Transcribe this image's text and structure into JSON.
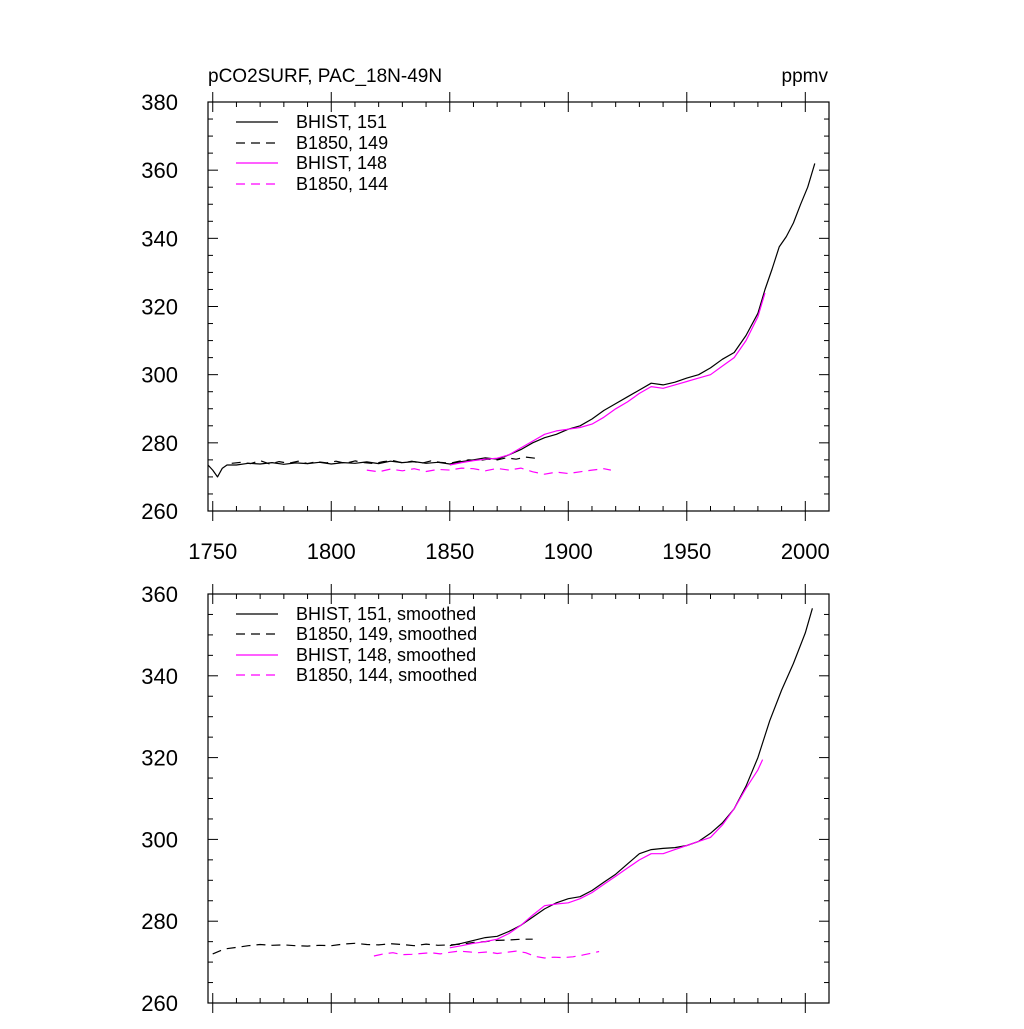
{
  "chart_data": [
    {
      "type": "line",
      "title_left": "pCO2SURF, PAC_18N-49N",
      "title_right": "ppmv",
      "xlabel": "",
      "ylabel": "",
      "xlim": [
        1748,
        2010
      ],
      "ylim": [
        260,
        380
      ],
      "x_ticks": [
        1750,
        1800,
        1850,
        1900,
        1950,
        2000
      ],
      "y_ticks": [
        260,
        280,
        300,
        320,
        340,
        360,
        380
      ],
      "show_x_tick_labels": true,
      "legend_position": "top-left",
      "series": [
        {
          "name": "BHIST, 151",
          "color": "#000000",
          "dash": "solid",
          "x": [
            1748,
            1750,
            1752,
            1754,
            1756,
            1760,
            1765,
            1770,
            1775,
            1780,
            1785,
            1790,
            1795,
            1800,
            1805,
            1810,
            1815,
            1820,
            1825,
            1830,
            1835,
            1840,
            1845,
            1850,
            1855,
            1860,
            1865,
            1870,
            1875,
            1880,
            1885,
            1890,
            1895,
            1900,
            1905,
            1910,
            1915,
            1920,
            1925,
            1930,
            1935,
            1940,
            1945,
            1950,
            1955,
            1960,
            1965,
            1970,
            1975,
            1980,
            1983,
            1986,
            1989,
            1992,
            1995,
            1998,
            2001,
            2004
          ],
          "y": [
            273.5,
            272.0,
            270.0,
            272.5,
            273.5,
            273.5,
            274.0,
            273.8,
            274.2,
            273.7,
            274.1,
            273.9,
            274.3,
            273.8,
            274.2,
            274.0,
            274.4,
            273.9,
            274.6,
            274.2,
            274.5,
            274.0,
            274.3,
            273.8,
            274.5,
            275.0,
            275.6,
            275.2,
            276.5,
            278.0,
            280.0,
            281.5,
            282.5,
            284.0,
            285.0,
            287.0,
            289.5,
            291.5,
            293.5,
            295.5,
            297.5,
            297.0,
            297.8,
            299.0,
            300.0,
            302.0,
            304.5,
            306.5,
            311.5,
            318.0,
            325.0,
            331.0,
            337.5,
            340.5,
            344.5,
            350.0,
            355.0,
            362.0
          ]
        },
        {
          "name": "B1850, 149",
          "color": "#000000",
          "dash": "dashed",
          "x": [
            1758,
            1762,
            1766,
            1770,
            1774,
            1778,
            1782,
            1786,
            1790,
            1794,
            1798,
            1802,
            1806,
            1810,
            1814,
            1818,
            1822,
            1826,
            1830,
            1834,
            1838,
            1842,
            1846,
            1850,
            1854,
            1858,
            1862,
            1866,
            1870,
            1874,
            1878,
            1882,
            1886
          ],
          "y": [
            274.0,
            274.3,
            273.9,
            274.8,
            273.8,
            274.5,
            274.0,
            274.6,
            273.9,
            274.5,
            274.1,
            274.6,
            274.0,
            274.7,
            274.2,
            273.9,
            274.5,
            274.8,
            274.1,
            274.6,
            274.0,
            274.7,
            274.3,
            274.0,
            274.6,
            275.0,
            274.8,
            275.2,
            275.0,
            275.6,
            275.2,
            275.8,
            275.5
          ]
        },
        {
          "name": "BHIST, 148",
          "color": "#ff00ff",
          "dash": "solid",
          "x": [
            1850,
            1855,
            1860,
            1865,
            1870,
            1875,
            1880,
            1885,
            1890,
            1895,
            1900,
            1905,
            1910,
            1915,
            1920,
            1925,
            1930,
            1935,
            1940,
            1945,
            1950,
            1955,
            1960,
            1965,
            1970,
            1975,
            1980,
            1983
          ],
          "y": [
            273.5,
            274.2,
            274.8,
            275.2,
            275.5,
            276.5,
            278.5,
            280.5,
            282.5,
            283.5,
            284.0,
            284.5,
            285.5,
            287.5,
            290.0,
            292.0,
            294.5,
            296.5,
            296.0,
            297.0,
            298.0,
            299.0,
            300.0,
            302.5,
            305.0,
            310.0,
            317.0,
            324.0
          ]
        },
        {
          "name": "B1850, 144",
          "color": "#ff00ff",
          "dash": "dashed",
          "x": [
            1815,
            1820,
            1825,
            1830,
            1835,
            1840,
            1845,
            1850,
            1855,
            1860,
            1865,
            1870,
            1875,
            1880,
            1885,
            1890,
            1895,
            1900,
            1905,
            1910,
            1915,
            1918
          ],
          "y": [
            272.0,
            271.5,
            272.3,
            271.8,
            272.4,
            271.6,
            272.2,
            272.0,
            272.6,
            272.4,
            271.8,
            272.5,
            272.0,
            272.6,
            271.5,
            270.8,
            271.4,
            271.0,
            271.5,
            272.0,
            272.4,
            272.0
          ]
        }
      ]
    },
    {
      "type": "line",
      "title_left": "",
      "title_right": "",
      "xlabel": "",
      "ylabel": "",
      "xlim": [
        1748,
        2010
      ],
      "ylim": [
        260,
        360
      ],
      "x_ticks": [
        1750,
        1800,
        1850,
        1900,
        1950,
        2000
      ],
      "y_ticks": [
        260,
        280,
        300,
        320,
        340,
        360
      ],
      "show_x_tick_labels": false,
      "legend_position": "top-left",
      "series": [
        {
          "name": "BHIST, 151, smoothed",
          "color": "#000000",
          "dash": "solid",
          "x": [
            1850,
            1855,
            1860,
            1865,
            1870,
            1875,
            1880,
            1885,
            1890,
            1895,
            1900,
            1905,
            1910,
            1915,
            1920,
            1925,
            1930,
            1935,
            1940,
            1945,
            1950,
            1955,
            1960,
            1965,
            1970,
            1975,
            1980,
            1985,
            1990,
            1995,
            2000,
            2003
          ],
          "y": [
            274.0,
            274.6,
            275.3,
            276.0,
            276.3,
            277.5,
            279.0,
            281.0,
            283.0,
            284.5,
            285.5,
            286.0,
            287.5,
            289.5,
            291.5,
            294.0,
            296.5,
            297.5,
            297.8,
            298.0,
            298.5,
            299.5,
            301.5,
            304.0,
            307.5,
            313.0,
            320.0,
            329.0,
            336.5,
            343.0,
            350.5,
            356.5
          ]
        },
        {
          "name": "B1850, 149, smoothed",
          "color": "#000000",
          "dash": "dashed",
          "x": [
            1750,
            1755,
            1760,
            1765,
            1770,
            1775,
            1780,
            1785,
            1790,
            1795,
            1800,
            1805,
            1810,
            1815,
            1820,
            1825,
            1830,
            1835,
            1840,
            1845,
            1850,
            1855,
            1860,
            1865,
            1870,
            1875,
            1880,
            1885
          ],
          "y": [
            272.0,
            273.2,
            273.6,
            274.0,
            274.3,
            274.1,
            274.2,
            274.0,
            273.9,
            274.1,
            274.0,
            274.4,
            274.6,
            274.3,
            274.2,
            274.5,
            274.3,
            274.0,
            274.4,
            274.1,
            274.2,
            274.4,
            274.8,
            275.0,
            275.3,
            275.4,
            275.6,
            275.6
          ]
        },
        {
          "name": "BHIST, 148, smoothed",
          "color": "#ff00ff",
          "dash": "solid",
          "x": [
            1850,
            1855,
            1860,
            1865,
            1870,
            1875,
            1880,
            1885,
            1890,
            1895,
            1900,
            1905,
            1910,
            1915,
            1920,
            1925,
            1930,
            1935,
            1940,
            1945,
            1950,
            1955,
            1960,
            1965,
            1970,
            1975,
            1980,
            1982
          ],
          "y": [
            273.5,
            274.0,
            274.6,
            275.0,
            275.6,
            277.0,
            279.0,
            281.5,
            283.8,
            284.2,
            284.5,
            285.5,
            287.0,
            289.0,
            291.0,
            293.0,
            295.0,
            296.5,
            296.5,
            297.5,
            298.5,
            299.5,
            300.5,
            303.5,
            307.5,
            312.5,
            317.0,
            319.5
          ]
        },
        {
          "name": "B1850, 144, smoothed",
          "color": "#ff00ff",
          "dash": "dashed",
          "x": [
            1818,
            1822,
            1826,
            1830,
            1834,
            1838,
            1842,
            1846,
            1850,
            1854,
            1858,
            1862,
            1866,
            1870,
            1874,
            1878,
            1882,
            1886,
            1890,
            1894,
            1898,
            1902,
            1906,
            1910,
            1913
          ],
          "y": [
            271.5,
            272.0,
            272.3,
            271.8,
            271.9,
            272.1,
            272.3,
            272.0,
            272.4,
            272.7,
            272.5,
            272.3,
            272.5,
            272.1,
            272.4,
            272.7,
            272.3,
            271.4,
            271.0,
            271.2,
            271.1,
            271.3,
            271.7,
            272.2,
            272.6
          ]
        }
      ]
    }
  ]
}
